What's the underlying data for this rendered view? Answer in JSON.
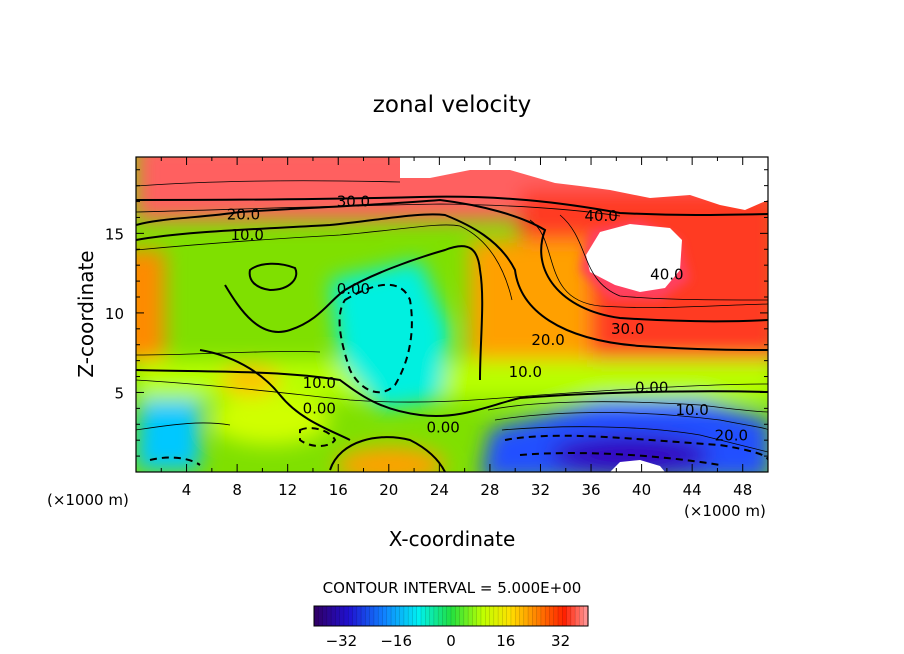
{
  "chart_data": {
    "type": "heatmap",
    "title": "zonal velocity",
    "xlabel": "X-coordinate",
    "ylabel": "Z-coordinate",
    "x_unit": "(×1000 m)",
    "x_unit_right": "(×1000 m)",
    "xlim": [
      0,
      50
    ],
    "ylim": [
      0,
      19.8
    ],
    "x_ticks": [
      "4",
      "8",
      "12",
      "16",
      "20",
      "24",
      "28",
      "32",
      "36",
      "40",
      "44",
      "48"
    ],
    "x_tick_values": [
      4,
      8,
      12,
      16,
      20,
      24,
      28,
      32,
      36,
      40,
      44,
      48
    ],
    "y_ticks": [
      "5",
      "10",
      "15"
    ],
    "y_tick_values": [
      5,
      10,
      15
    ],
    "contour_labels": [
      {
        "text": "30.0",
        "x": 17.2,
        "z": 17.0
      },
      {
        "text": "20.0",
        "x": 8.5,
        "z": 16.2
      },
      {
        "text": "10.0",
        "x": 8.8,
        "z": 14.9
      },
      {
        "text": "40.0",
        "x": 36.8,
        "z": 16.1
      },
      {
        "text": "40.0",
        "x": 42.0,
        "z": 12.4
      },
      {
        "text": "0.00",
        "x": 17.2,
        "z": 11.5
      },
      {
        "text": "30.0",
        "x": 38.9,
        "z": 9.0
      },
      {
        "text": "20.0",
        "x": 32.6,
        "z": 8.3
      },
      {
        "text": "10.0",
        "x": 30.8,
        "z": 6.3
      },
      {
        "text": "0.00",
        "x": 40.8,
        "z": 5.3
      },
      {
        "text": "10.0",
        "x": 44.0,
        "z": 3.9
      },
      {
        "text": "20.0",
        "x": 47.1,
        "z": 2.3
      },
      {
        "text": "10.0",
        "x": 14.5,
        "z": 5.6
      },
      {
        "text": "0.00",
        "x": 14.5,
        "z": 4.0
      },
      {
        "text": "0.00",
        "x": 24.3,
        "z": 2.8
      }
    ],
    "colorbar": {
      "label": "CONTOUR INTERVAL = 5.000E+00",
      "ticks": [
        "−32",
        "−16",
        "0",
        "16",
        "32"
      ],
      "tick_values": [
        -32,
        -16,
        0,
        16,
        32
      ],
      "range": [
        -40,
        40
      ]
    },
    "grid": false,
    "legend": "none"
  }
}
